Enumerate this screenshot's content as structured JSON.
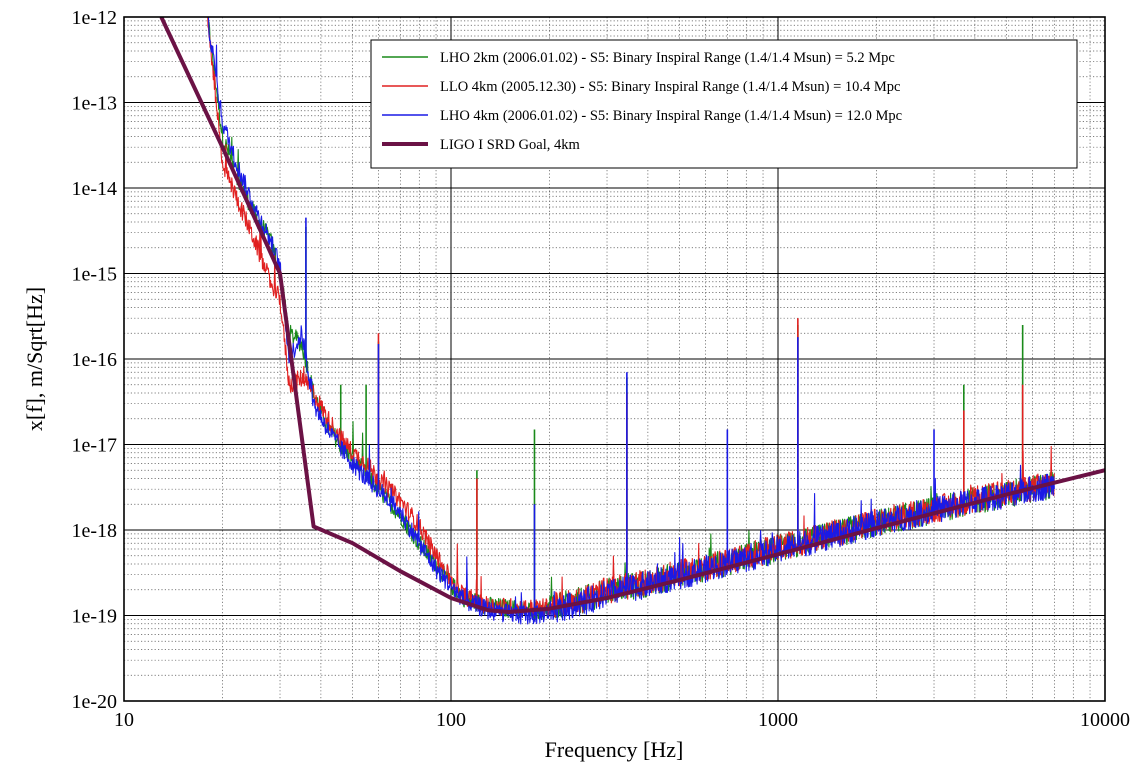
{
  "chart_data": {
    "type": "line",
    "title": "",
    "xlabel": "Frequency [Hz]",
    "ylabel": "x[f], m/Sqrt[Hz]",
    "x_scale": "log",
    "y_scale": "log",
    "xlim": [
      10,
      10000
    ],
    "ylim": [
      1e-20,
      1e-12
    ],
    "x_ticks": [
      10,
      100,
      1000,
      10000
    ],
    "x_tick_labels": [
      "10",
      "100",
      "1000",
      "10000"
    ],
    "y_ticks": [
      1e-20,
      1e-19,
      1e-18,
      1e-17,
      1e-16,
      1e-15,
      1e-14,
      1e-13,
      1e-12
    ],
    "y_tick_labels": [
      "1e-20",
      "1e-19",
      "1e-18",
      "1e-17",
      "1e-16",
      "1e-15",
      "1e-14",
      "1e-13",
      "1e-12"
    ],
    "grid": true,
    "legend_position": "top-right",
    "series": [
      {
        "name": "LHO 2km (2006.01.02) - S5: Binary Inspiral Range (1.4/1.4 Msun) = 5.2 Mpc",
        "color": "#1a8a1a",
        "x": [
          18,
          20,
          22,
          25,
          28,
          30,
          32,
          35,
          38,
          42,
          46,
          50,
          55,
          60,
          70,
          80,
          90,
          100,
          110,
          130,
          150,
          180,
          200,
          250,
          300,
          400,
          500,
          700,
          1000,
          1500,
          2000,
          3000,
          4000,
          5000,
          6000,
          7000
        ],
        "y": [
          1e-12,
          4e-14,
          1.5e-14,
          5e-15,
          2.5e-15,
          1e-15,
          2e-16,
          1.5e-16,
          4e-17,
          1.6e-17,
          1e-17,
          7e-18,
          4.5e-18,
          3e-18,
          1.5e-18,
          7e-19,
          4e-19,
          2.3e-19,
          1.6e-19,
          1.3e-19,
          1.2e-19,
          1.15e-19,
          1.2e-19,
          1.5e-19,
          1.9e-19,
          2.4e-19,
          3e-19,
          4.2e-19,
          6e-19,
          9e-19,
          1.2e-18,
          1.7e-18,
          2.2e-18,
          2.6e-18,
          3e-18,
          3.4e-18
        ],
        "peaks": [
          [
            29,
            2e-15
          ],
          [
            36,
            3.5e-15
          ],
          [
            46,
            5e-17
          ],
          [
            55,
            5e-17
          ],
          [
            60,
            1.6e-16
          ],
          [
            120,
            5e-18
          ],
          [
            180,
            1.5e-17
          ],
          [
            345,
            6e-17
          ],
          [
            1150,
            2.5e-16
          ],
          [
            5600,
            2.5e-16
          ],
          [
            3700,
            5e-17
          ]
        ]
      },
      {
        "name": "LLO 4km (2005.12.30) - S5: Binary Inspiral Range (1.4/1.4 Msun) = 10.4 Mpc",
        "color": "#e02020",
        "x": [
          18,
          20,
          22,
          25,
          28,
          30,
          32,
          35,
          38,
          42,
          46,
          50,
          55,
          60,
          70,
          80,
          90,
          100,
          110,
          130,
          150,
          180,
          200,
          250,
          300,
          400,
          500,
          700,
          1000,
          1500,
          2000,
          3000,
          4000,
          5000,
          6000,
          7000
        ],
        "y": [
          1e-12,
          2e-14,
          8e-15,
          2.5e-15,
          8e-16,
          5e-16,
          5e-17,
          6e-17,
          4e-17,
          2e-17,
          1.2e-17,
          8e-18,
          6e-18,
          4e-18,
          2.2e-18,
          1.1e-18,
          5e-19,
          2.6e-19,
          1.7e-19,
          1.3e-19,
          1.25e-19,
          1.2e-19,
          1.25e-19,
          1.55e-19,
          1.95e-19,
          2.5e-19,
          3.1e-19,
          4.3e-19,
          6.2e-19,
          9.2e-19,
          1.25e-18,
          1.75e-18,
          2.25e-18,
          2.7e-18,
          3.1e-18,
          3.5e-18
        ],
        "peaks": [
          [
            60,
            2e-16
          ],
          [
            84,
            1e-18
          ],
          [
            120,
            4e-18
          ],
          [
            345,
            4e-17
          ],
          [
            1150,
            3e-16
          ],
          [
            3700,
            2.5e-17
          ],
          [
            5600,
            5e-17
          ]
        ]
      },
      {
        "name": "LHO 4km (2006.01.02) - S5: Binary Inspiral Range (1.4/1.4 Msun) = 12.0 Mpc",
        "color": "#1a1ae6",
        "x": [
          18,
          20,
          22,
          25,
          28,
          30,
          32,
          35,
          38,
          42,
          46,
          50,
          55,
          60,
          70,
          80,
          90,
          100,
          110,
          130,
          150,
          180,
          200,
          250,
          300,
          400,
          500,
          700,
          1000,
          1500,
          2000,
          3000,
          4000,
          5000,
          6000,
          7000
        ],
        "y": [
          1e-12,
          6e-14,
          2e-14,
          6e-15,
          2.5e-15,
          1.2e-15,
          1e-16,
          2e-16,
          3e-17,
          1.5e-17,
          9e-18,
          6e-18,
          4e-18,
          3e-18,
          1.6e-18,
          7e-19,
          3.5e-19,
          2.2e-19,
          1.5e-19,
          1.15e-19,
          1.05e-19,
          1e-19,
          1.1e-19,
          1.4e-19,
          1.8e-19,
          2.3e-19,
          2.9e-19,
          4.1e-19,
          5.8e-19,
          8.8e-19,
          1.2e-18,
          1.7e-18,
          2.2e-18,
          2.6e-18,
          3e-18,
          3.4e-18
        ],
        "peaks": [
          [
            36,
            4.5e-15
          ],
          [
            60,
            1.5e-16
          ],
          [
            180,
            2e-18
          ],
          [
            345,
            7e-17
          ],
          [
            700,
            1.5e-17
          ],
          [
            1150,
            1.8e-16
          ],
          [
            3000,
            1.5e-17
          ]
        ]
      },
      {
        "name": "LIGO I SRD Goal, 4km",
        "color": "#6b1245",
        "x": [
          13,
          20,
          30,
          38,
          50,
          70,
          100,
          130,
          150,
          200,
          300,
          500,
          1000,
          2000,
          5000,
          10000
        ],
        "y": [
          1e-12,
          3e-14,
          1e-15,
          1.1e-18,
          7e-19,
          3.3e-19,
          1.6e-19,
          1.15e-19,
          1.1e-19,
          1.2e-19,
          1.6e-19,
          2.6e-19,
          5.2e-19,
          1.05e-18,
          2.6e-18,
          5e-18
        ]
      }
    ]
  }
}
